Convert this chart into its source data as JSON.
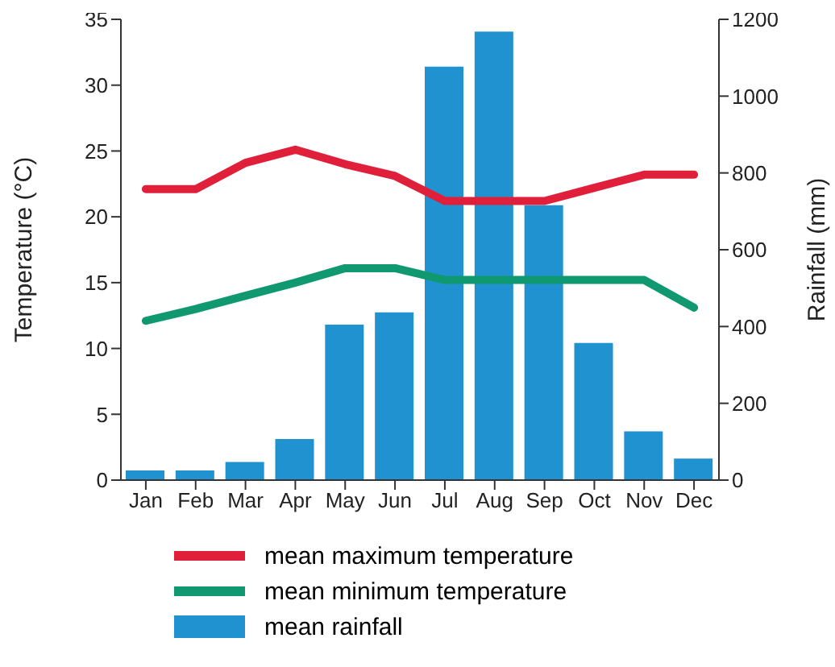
{
  "chart_data": {
    "type": "bar",
    "categories": [
      "Jan",
      "Feb",
      "Mar",
      "Apr",
      "May",
      "Jun",
      "Jul",
      "Aug",
      "Sep",
      "Oct",
      "Nov",
      "Dec"
    ],
    "series": [
      {
        "name": "mean maximum temperature",
        "type": "line",
        "color": "#e0203a",
        "values": [
          22.1,
          22.1,
          24.1,
          25.1,
          24.0,
          23.1,
          21.2,
          21.2,
          21.2,
          22.2,
          23.2,
          23.2
        ]
      },
      {
        "name": "mean minimum temperature",
        "type": "line",
        "color": "#109870",
        "values": [
          12.1,
          13.0,
          14.0,
          15.0,
          16.1,
          16.1,
          15.2,
          15.2,
          15.2,
          15.2,
          15.2,
          13.1
        ]
      },
      {
        "name": "mean rainfall",
        "axis": "y2",
        "color": "#2092d0",
        "values": [
          25,
          25,
          47,
          107,
          405,
          437,
          1077,
          1168,
          716,
          357,
          127,
          56
        ]
      }
    ],
    "ylabel": "Temperature (°C)",
    "y2label": "Rainfall (mm)",
    "ylim": [
      0,
      35
    ],
    "yticks": [
      0,
      5,
      10,
      15,
      20,
      25,
      30,
      35
    ],
    "y2lim": [
      0,
      1200
    ],
    "y2ticks": [
      0,
      200,
      400,
      600,
      800,
      1000,
      1200
    ],
    "legend": "bottom",
    "marker": "none",
    "line_style": "solid",
    "grid": false
  }
}
